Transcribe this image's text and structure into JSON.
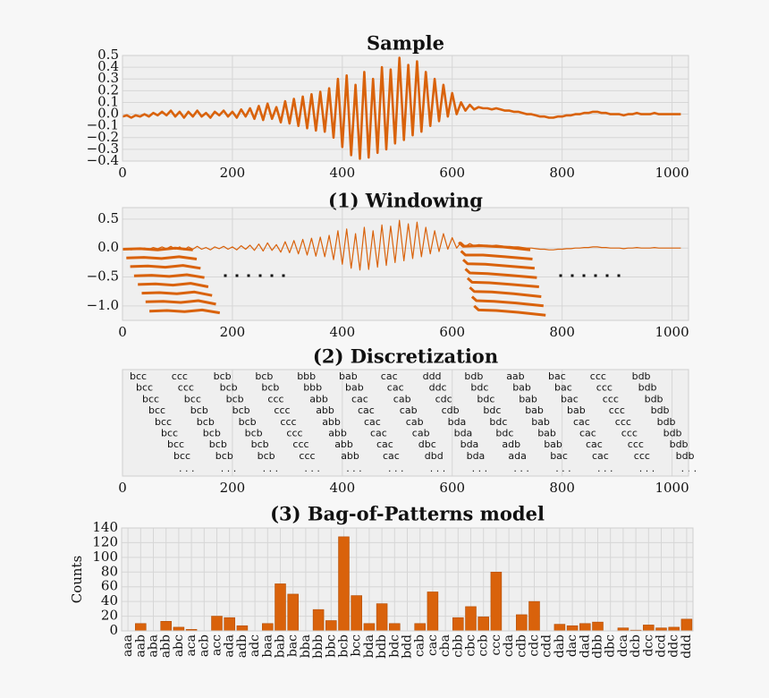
{
  "chart_data": [
    {
      "type": "line",
      "title": "Sample",
      "color": "#d9620b",
      "grid": true,
      "xlim": [
        0,
        1030
      ],
      "xticks": [
        0,
        200,
        400,
        600,
        800,
        1000
      ],
      "ylim": [
        -0.4,
        0.5
      ],
      "yticks": [
        {
          "value": -0.4,
          "label": "−0.4"
        },
        {
          "value": -0.3,
          "label": "−0.3"
        },
        {
          "value": -0.2,
          "label": "−0.2"
        },
        {
          "value": -0.1,
          "label": "−0.1"
        },
        {
          "value": 0,
          "label": "0.0"
        },
        0.1,
        0.2,
        0.3,
        0.4,
        0.5
      ],
      "x": [
        0,
        8,
        16,
        24,
        32,
        40,
        48,
        56,
        64,
        72,
        80,
        88,
        96,
        104,
        112,
        120,
        128,
        136,
        144,
        152,
        160,
        168,
        176,
        184,
        192,
        200,
        208,
        216,
        224,
        232,
        240,
        248,
        256,
        264,
        272,
        280,
        288,
        296,
        304,
        312,
        320,
        328,
        336,
        344,
        352,
        360,
        368,
        376,
        384,
        392,
        400,
        408,
        416,
        424,
        432,
        440,
        448,
        456,
        464,
        472,
        480,
        488,
        496,
        504,
        512,
        520,
        528,
        536,
        544,
        552,
        560,
        568,
        576,
        584,
        592,
        600,
        608,
        616,
        624,
        632,
        640,
        648,
        656,
        664,
        672,
        680,
        688,
        696,
        704,
        712,
        720,
        728,
        736,
        744,
        752,
        760,
        768,
        776,
        784,
        792,
        800,
        808,
        816,
        824,
        832,
        840,
        848,
        856,
        864,
        872,
        880,
        888,
        896,
        904,
        912,
        920,
        928,
        936,
        944,
        952,
        960,
        968,
        976,
        984,
        992,
        1000,
        1008,
        1016
      ],
      "values": [
        -0.02,
        -0.01,
        -0.03,
        -0.01,
        -0.02,
        0,
        -0.02,
        0.01,
        -0.01,
        0.02,
        -0.01,
        0.03,
        -0.02,
        0.02,
        -0.03,
        0.02,
        -0.02,
        0.03,
        -0.02,
        0.01,
        -0.03,
        0.02,
        -0.01,
        0.03,
        -0.02,
        0.02,
        -0.03,
        0.04,
        -0.02,
        0.05,
        -0.04,
        0.07,
        -0.05,
        0.09,
        -0.04,
        0.06,
        -0.07,
        0.11,
        -0.08,
        0.13,
        -0.1,
        0.15,
        -0.12,
        0.17,
        -0.14,
        0.19,
        -0.15,
        0.22,
        -0.2,
        0.3,
        -0.28,
        0.33,
        -0.35,
        0.25,
        -0.38,
        0.36,
        -0.37,
        0.3,
        -0.33,
        0.4,
        -0.3,
        0.38,
        -0.25,
        0.48,
        -0.22,
        0.42,
        -0.18,
        0.45,
        -0.15,
        0.36,
        -0.1,
        0.3,
        -0.06,
        0.25,
        -0.02,
        0.18,
        0,
        0.1,
        0.03,
        0.08,
        0.04,
        0.06,
        0.05,
        0.05,
        0.04,
        0.05,
        0.04,
        0.03,
        0.03,
        0.02,
        0.02,
        0.01,
        0,
        0,
        -0.01,
        -0.02,
        -0.02,
        -0.03,
        -0.03,
        -0.02,
        -0.02,
        -0.01,
        -0.01,
        0,
        0,
        0.01,
        0.01,
        0.02,
        0.02,
        0.01,
        0.01,
        0,
        0,
        0,
        -0.01,
        0,
        0,
        0.01,
        0,
        0,
        0,
        0.01,
        0,
        0,
        0,
        0,
        0,
        0
      ]
    },
    {
      "type": "line",
      "title": "(1) Windowing",
      "color": "#d9620b",
      "grid": true,
      "xlim": [
        0,
        1030
      ],
      "xticks": [
        0,
        200,
        400,
        600,
        800,
        1000
      ],
      "ylim": [
        -1.25,
        0.7
      ],
      "yticks": [
        {
          "value": -1,
          "label": "−1.0"
        },
        {
          "value": -0.5,
          "label": "−0.5"
        },
        {
          "value": 0,
          "label": "0.0"
        },
        0.5
      ],
      "x": [
        0,
        8,
        16,
        24,
        32,
        40,
        48,
        56,
        64,
        72,
        80,
        88,
        96,
        104,
        112,
        120,
        128,
        136,
        144,
        152,
        160,
        168,
        176,
        184,
        192,
        200,
        208,
        216,
        224,
        232,
        240,
        248,
        256,
        264,
        272,
        280,
        288,
        296,
        304,
        312,
        320,
        328,
        336,
        344,
        352,
        360,
        368,
        376,
        384,
        392,
        400,
        408,
        416,
        424,
        432,
        440,
        448,
        456,
        464,
        472,
        480,
        488,
        496,
        504,
        512,
        520,
        528,
        536,
        544,
        552,
        560,
        568,
        576,
        584,
        592,
        600,
        608,
        616,
        624,
        632,
        640,
        648,
        656,
        664,
        672,
        680,
        688,
        696,
        704,
        712,
        720,
        728,
        736,
        744,
        752,
        760,
        768,
        776,
        784,
        792,
        800,
        808,
        816,
        824,
        832,
        840,
        848,
        856,
        864,
        872,
        880,
        888,
        896,
        904,
        912,
        920,
        928,
        936,
        944,
        952,
        960,
        968,
        976,
        984,
        992,
        1000,
        1008,
        1016
      ],
      "values": [
        -0.02,
        -0.01,
        -0.03,
        -0.01,
        -0.02,
        0,
        -0.02,
        0.01,
        -0.01,
        0.02,
        -0.01,
        0.03,
        -0.02,
        0.02,
        -0.03,
        0.02,
        -0.02,
        0.03,
        -0.02,
        0.01,
        -0.03,
        0.02,
        -0.01,
        0.03,
        -0.02,
        0.02,
        -0.03,
        0.04,
        -0.02,
        0.05,
        -0.04,
        0.07,
        -0.05,
        0.09,
        -0.04,
        0.06,
        -0.07,
        0.11,
        -0.08,
        0.13,
        -0.1,
        0.15,
        -0.12,
        0.17,
        -0.14,
        0.19,
        -0.15,
        0.22,
        -0.2,
        0.3,
        -0.28,
        0.33,
        -0.35,
        0.25,
        -0.38,
        0.36,
        -0.37,
        0.3,
        -0.33,
        0.4,
        -0.3,
        0.38,
        -0.25,
        0.48,
        -0.22,
        0.42,
        -0.18,
        0.45,
        -0.15,
        0.36,
        -0.1,
        0.3,
        -0.06,
        0.25,
        -0.02,
        0.18,
        0,
        0.1,
        0.03,
        0.08,
        0.04,
        0.06,
        0.05,
        0.05,
        0.04,
        0.05,
        0.04,
        0.03,
        0.03,
        0.02,
        0.02,
        0.01,
        0,
        0,
        -0.01,
        -0.02,
        -0.02,
        -0.03,
        -0.03,
        -0.02,
        -0.02,
        -0.01,
        -0.01,
        0,
        0,
        0.01,
        0.01,
        0.02,
        0.02,
        0.01,
        0.01,
        0,
        0,
        0,
        -0.01,
        0,
        0,
        0.01,
        0,
        0,
        0,
        0.01,
        0,
        0,
        0,
        0,
        0,
        0
      ],
      "segments": [
        {
          "x": [
            0,
            32,
            64,
            96,
            128
          ],
          "values": [
            -0.02,
            -0.01,
            -0.03,
            0,
            -0.03
          ]
        },
        {
          "x": [
            7,
            39,
            71,
            103,
            135
          ],
          "values": [
            -0.17,
            -0.16,
            -0.18,
            -0.15,
            -0.19
          ]
        },
        {
          "x": [
            14,
            46,
            78,
            110,
            142
          ],
          "values": [
            -0.32,
            -0.31,
            -0.33,
            -0.3,
            -0.35
          ]
        },
        {
          "x": [
            21,
            53,
            85,
            117,
            149
          ],
          "values": [
            -0.48,
            -0.47,
            -0.49,
            -0.46,
            -0.51
          ]
        },
        {
          "x": [
            28,
            60,
            92,
            124,
            156
          ],
          "values": [
            -0.63,
            -0.62,
            -0.64,
            -0.61,
            -0.67
          ]
        },
        {
          "x": [
            35,
            67,
            99,
            131,
            163
          ],
          "values": [
            -0.78,
            -0.77,
            -0.79,
            -0.76,
            -0.82
          ]
        },
        {
          "x": [
            42,
            74,
            106,
            138,
            170
          ],
          "values": [
            -0.93,
            -0.92,
            -0.94,
            -0.91,
            -0.97
          ]
        },
        {
          "x": [
            49,
            81,
            113,
            145,
            177
          ],
          "values": [
            -1.09,
            -1.08,
            -1.1,
            -1.07,
            -1.12
          ]
        },
        {
          "x": [
            612,
            620,
            652,
            692,
            742
          ],
          "values": [
            0.1,
            0.03,
            0.04,
            0.02,
            -0.03
          ]
        },
        {
          "x": [
            616,
            624,
            656,
            696,
            746
          ],
          "values": [
            -0.05,
            -0.12,
            -0.12,
            -0.15,
            -0.19
          ]
        },
        {
          "x": [
            620,
            628,
            660,
            700,
            750
          ],
          "values": [
            -0.2,
            -0.27,
            -0.28,
            -0.31,
            -0.35
          ]
        },
        {
          "x": [
            624,
            632,
            664,
            704,
            754
          ],
          "values": [
            -0.36,
            -0.43,
            -0.44,
            -0.47,
            -0.51
          ]
        },
        {
          "x": [
            628,
            636,
            668,
            708,
            758
          ],
          "values": [
            -0.52,
            -0.59,
            -0.6,
            -0.63,
            -0.67
          ]
        },
        {
          "x": [
            632,
            640,
            672,
            712,
            762
          ],
          "values": [
            -0.68,
            -0.75,
            -0.76,
            -0.79,
            -0.84
          ]
        },
        {
          "x": [
            636,
            644,
            676,
            716,
            766
          ],
          "values": [
            -0.84,
            -0.91,
            -0.92,
            -0.95,
            -1.0
          ]
        },
        {
          "x": [
            640,
            648,
            680,
            720,
            770
          ],
          "values": [
            -1.0,
            -1.07,
            -1.08,
            -1.11,
            -1.16
          ]
        }
      ]
    },
    {
      "type": "words",
      "title": "(2) Discretization",
      "grid": true,
      "xlim": [
        0,
        1030
      ],
      "xticks": [
        0,
        200,
        400,
        600,
        800,
        1000
      ],
      "rows": [
        [
          "bcc",
          "ccc",
          "bcb",
          "bcb",
          "bbb",
          "bab",
          "cac",
          "ddd",
          "bdb",
          "aab",
          "bac",
          "ccc",
          "bdb"
        ],
        [
          "bcc",
          "ccc",
          "bcb",
          "bcb",
          "bbb",
          "bab",
          "cac",
          "ddc",
          "bdc",
          "bab",
          "bac",
          "ccc",
          "bdb"
        ],
        [
          "bcc",
          "bcc",
          "bcb",
          "ccc",
          "abb",
          "cac",
          "cab",
          "cdc",
          "bdc",
          "bab",
          "bac",
          "ccc",
          "bdb"
        ],
        [
          "bcc",
          "bcb",
          "bcb",
          "ccc",
          "abb",
          "cac",
          "cab",
          "cdb",
          "bdc",
          "bab",
          "bab",
          "ccc",
          "bdb"
        ],
        [
          "bcc",
          "bcb",
          "bcb",
          "ccc",
          "abb",
          "cac",
          "cab",
          "bda",
          "bdc",
          "bab",
          "cac",
          "ccc",
          "bdb"
        ],
        [
          "bcc",
          "bcb",
          "bcb",
          "ccc",
          "abb",
          "cac",
          "cab",
          "bda",
          "bdc",
          "bab",
          "cac",
          "ccc",
          "bdb"
        ],
        [
          "bcc",
          "bcb",
          "bcb",
          "ccc",
          "abb",
          "cac",
          "dbc",
          "bda",
          "adb",
          "bab",
          "cac",
          "ccc",
          "bdb"
        ],
        [
          "bcc",
          "bcb",
          "bcb",
          "ccc",
          "abb",
          "cac",
          "dbd",
          "bda",
          "ada",
          "bac",
          "cac",
          "ccc",
          "bdb"
        ]
      ],
      "ellipsis": ". . ."
    },
    {
      "type": "bar",
      "title": "(3) Bag-of-Patterns model",
      "ylabel": "Counts",
      "color": "#d9620b",
      "grid": true,
      "ylim": [
        0,
        140
      ],
      "yticks": [
        0,
        20,
        40,
        60,
        80,
        100,
        120,
        140
      ],
      "categories": [
        "aaa",
        "aab",
        "aba",
        "abb",
        "abc",
        "aca",
        "acb",
        "acc",
        "ada",
        "adb",
        "adc",
        "baa",
        "bab",
        "bac",
        "bba",
        "bbb",
        "bbc",
        "bcb",
        "bcc",
        "bda",
        "bdb",
        "bdc",
        "bdd",
        "cab",
        "cac",
        "cba",
        "cbb",
        "cbc",
        "ccb",
        "ccc",
        "cda",
        "cdb",
        "cdc",
        "cdd",
        "dab",
        "dac",
        "dad",
        "dbb",
        "dbc",
        "dca",
        "dcb",
        "dcc",
        "dcd",
        "ddc",
        "ddd"
      ],
      "values": [
        0,
        10,
        0,
        13,
        5,
        2,
        0,
        20,
        18,
        7,
        0,
        10,
        64,
        50,
        0,
        29,
        14,
        128,
        48,
        10,
        37,
        10,
        0,
        10,
        53,
        0,
        18,
        33,
        19,
        80,
        0,
        22,
        40,
        0,
        9,
        7,
        10,
        12,
        0,
        4,
        1,
        8,
        4,
        5,
        16
      ]
    }
  ]
}
